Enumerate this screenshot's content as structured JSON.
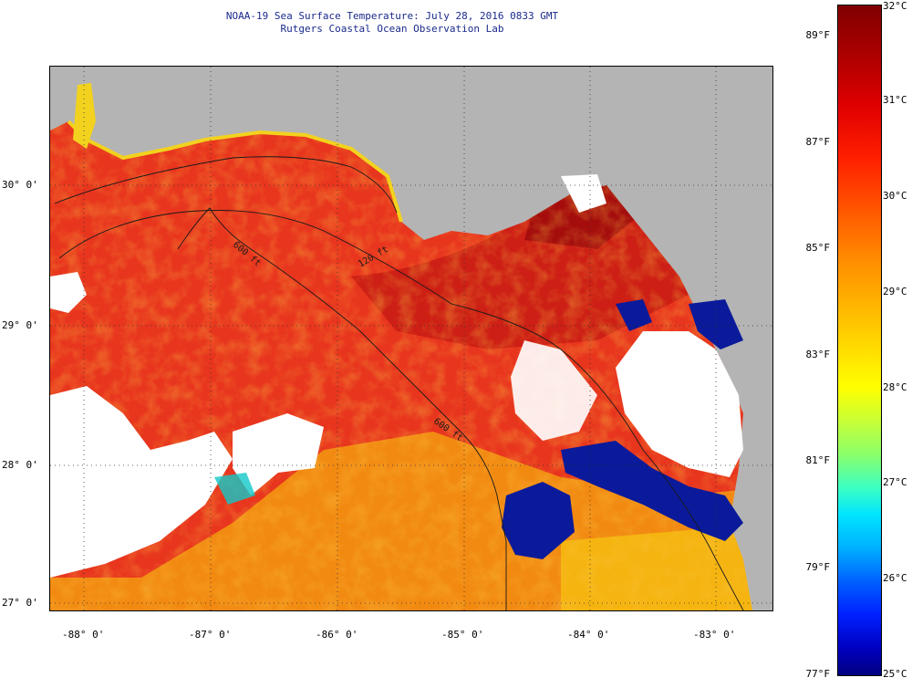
{
  "title": {
    "line1": "NOAA-19 Sea Surface Temperature:  July 28, 2016 0833 GMT",
    "line2": "Rutgers Coastal Ocean Observation Lab"
  },
  "map": {
    "latitude_labels": [
      "30° 0'",
      "29° 0'",
      "28° 0'",
      "27° 0'"
    ],
    "longitude_labels": [
      "-88° 0'",
      "-87° 0'",
      "-86° 0'",
      "-85° 0'",
      "-84° 0'",
      "-83° 0'"
    ],
    "isobath_labels": [
      "600 ft",
      "120 ft",
      "600 ft"
    ]
  },
  "colorbar": {
    "celsius": [
      "32°C",
      "31°C",
      "30°C",
      "29°C",
      "28°C",
      "27°C",
      "26°C",
      "25°C"
    ],
    "fahrenheit": [
      "89°F",
      "87°F",
      "85°F",
      "83°F",
      "81°F",
      "79°F",
      "77°F"
    ]
  },
  "colors": {
    "land": "#b4b4b4",
    "cloud": "#ffffff",
    "warm_water": "#e8351e",
    "hot_water": "#b80f0f",
    "cool_water": "#0a1a9a"
  }
}
